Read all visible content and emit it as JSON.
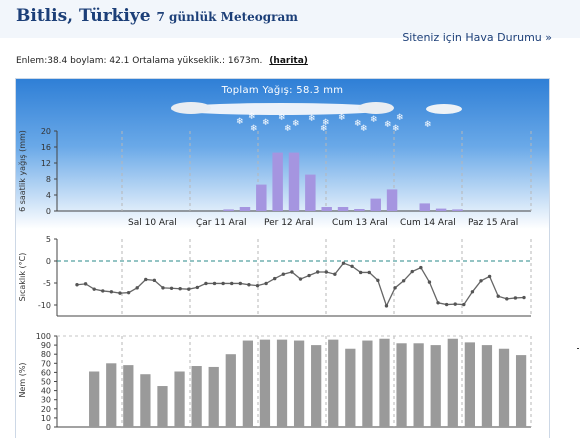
{
  "header": {
    "location": "Bitlis, Türkiye",
    "subtitle": "7 günlük Meteogram",
    "site_link": "Siteniz için Hava Durumu",
    "site_link_arrow": "»"
  },
  "info": {
    "text": "Enlem:38.4 boylam: 42.1 Ortalama yükseklik.: 1673m.",
    "map_link": "(harita)"
  },
  "colors": {
    "precip_bar": "#a595e0",
    "humidity_bar": "#9a9a9a",
    "temp_line": "#666666",
    "zero_line": "#2a8a8a",
    "sky_top": "#2f7fd6"
  },
  "chart_data": [
    {
      "type": "bar",
      "ylabel": "6 saatlik yağış (mm)",
      "title": "Toplam Yağış: 58.3 mm",
      "ylim": [
        0,
        20
      ],
      "yticks": [
        "0",
        "4",
        "8",
        "12",
        "16",
        "20"
      ],
      "day_labels": [
        "Sal 10 Aral",
        "Çar 11 Aral",
        "Per 12 Aral",
        "Cum 13 Aral",
        "Cum 14 Aral",
        "Paz 15 Aral"
      ],
      "values": [
        0,
        0,
        0,
        0,
        0,
        0,
        0,
        0,
        0,
        0,
        0.4,
        1.0,
        6.6,
        14.6,
        14.6,
        9.1,
        1.0,
        1.0,
        0.5,
        3.1,
        5.4,
        0,
        1.9,
        0.6,
        0.4,
        0,
        0,
        0,
        0
      ]
    },
    {
      "type": "line",
      "ylabel": "Sıcaklık (°C)",
      "ylim": [
        -12.5,
        5
      ],
      "yticks": [
        "-10",
        "-5",
        "0",
        "5"
      ],
      "values": [
        -5.4,
        -5.2,
        -6.4,
        -6.8,
        -7.0,
        -7.3,
        -7.2,
        -6.1,
        -4.2,
        -4.4,
        -6.1,
        -6.2,
        -6.3,
        -6.4,
        -6.0,
        -5.1,
        -5.1,
        -5.1,
        -5.1,
        -5.1,
        -5.4,
        -5.6,
        -5.1,
        -4.0,
        -3.0,
        -2.5,
        -4.1,
        -3.3,
        -2.5,
        -2.5,
        -3.0,
        -0.5,
        -1.2,
        -2.6,
        -2.6,
        -4.4,
        -10.2,
        -6.1,
        -4.5,
        -2.4,
        -1.5,
        -4.8,
        -9.5,
        -9.9,
        -9.8,
        -9.9,
        -7.0,
        -4.5,
        -3.5,
        -8.0,
        -8.6,
        -8.4,
        -8.3
      ]
    },
    {
      "type": "bar",
      "ylabel": "Nem (%)",
      "ylim": [
        0,
        100
      ],
      "yticks": [
        "0",
        "10",
        "20",
        "30",
        "40",
        "50",
        "60",
        "70",
        "80",
        "90",
        "100"
      ],
      "values": [
        61,
        70,
        68,
        58,
        45,
        61,
        67,
        66,
        80,
        95,
        96,
        96,
        95,
        90,
        96,
        86,
        95,
        97,
        92,
        92,
        90,
        97,
        93,
        90,
        86,
        79
      ]
    }
  ]
}
